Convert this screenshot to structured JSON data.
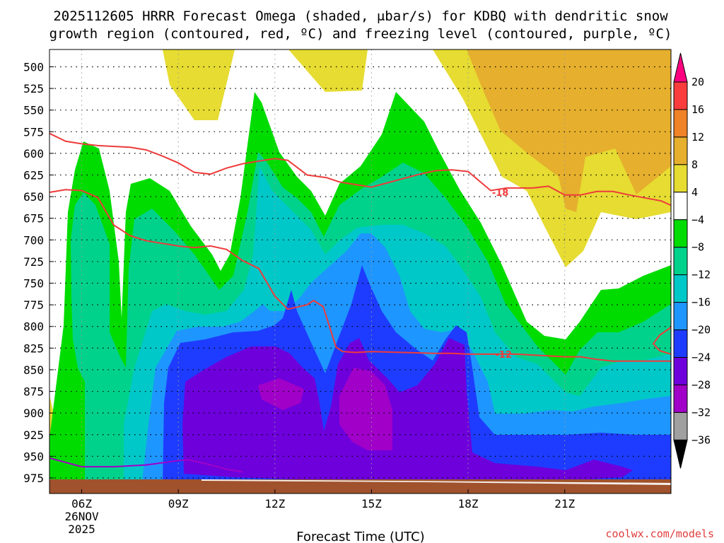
{
  "chart_data": {
    "type": "heatmap",
    "title_line1": "2025112605 HRRR Forecast Omega (shaded, μbar/s) for KDBQ with dendritic snow",
    "title_line2": "growth region (contoured, red, ºC) and freezing level (contoured, purple, ºC)",
    "xlabel": "Forecast Time (UTC)",
    "credit": "coolwx.com/models",
    "x_start_hour": 5,
    "x_end_hour": 24.3,
    "x_ticks": [
      {
        "hour": 6,
        "label": "06Z",
        "sub1": "26NOV",
        "sub2": "2025"
      },
      {
        "hour": 9,
        "label": "09Z"
      },
      {
        "hour": 12,
        "label": "12Z"
      },
      {
        "hour": 15,
        "label": "15Z"
      },
      {
        "hour": 18,
        "label": "18Z"
      },
      {
        "hour": 21,
        "label": "21Z"
      }
    ],
    "y_ticks": [
      500,
      525,
      550,
      575,
      600,
      625,
      650,
      675,
      700,
      725,
      750,
      775,
      800,
      825,
      850,
      875,
      900,
      925,
      950,
      975
    ],
    "ylim": [
      480,
      993
    ],
    "colorbar": {
      "levels": [
        "20",
        "16",
        "12",
        "8",
        "4",
        "−4",
        "−8",
        "−12",
        "−16",
        "−20",
        "−24",
        "−28",
        "−32",
        "−36"
      ],
      "colors": [
        "#ff0080",
        "#fa3c3c",
        "#f08228",
        "#e6af2d",
        "#e6dc32",
        "#ffffff",
        "#00dc00",
        "#00d28c",
        "#00c8c8",
        "#1e96ff",
        "#1e3cff",
        "#6e00dc",
        "#a000c8",
        "#a0a0a0",
        "#000000"
      ]
    },
    "contours": [
      {
        "name": "-18",
        "color": "#ee3b3b",
        "points": [
          [
            5,
            577
          ],
          [
            5.5,
            586
          ],
          [
            6,
            589
          ],
          [
            6.5,
            591
          ],
          [
            7,
            592
          ],
          [
            7.5,
            593
          ],
          [
            8,
            596
          ],
          [
            8.5,
            603
          ],
          [
            9,
            611
          ],
          [
            9.5,
            622
          ],
          [
            10,
            624
          ],
          [
            10.5,
            617
          ],
          [
            11,
            612
          ],
          [
            11.5,
            609
          ],
          [
            12,
            606
          ],
          [
            12.4,
            608
          ],
          [
            13,
            625
          ],
          [
            13.6,
            628
          ],
          [
            14,
            633
          ],
          [
            14.5,
            636
          ],
          [
            15,
            639
          ],
          [
            15.5,
            634
          ],
          [
            16,
            629
          ],
          [
            16.5,
            624
          ],
          [
            17,
            620
          ],
          [
            17.5,
            619
          ],
          [
            18,
            621
          ],
          [
            18.7,
            643
          ],
          [
            19.2,
            640
          ],
          [
            20,
            640
          ],
          [
            20.5,
            638
          ],
          [
            21,
            648
          ],
          [
            21.5,
            648
          ],
          [
            22,
            644
          ],
          [
            22.5,
            644
          ],
          [
            23,
            648
          ],
          [
            24,
            655
          ],
          [
            24.3,
            660
          ]
        ],
        "label": {
          "text": "-18",
          "hour": 19.0,
          "pressure": 645
        }
      },
      {
        "name": "-12",
        "color": "#ee3b3b",
        "points": [
          [
            5,
            645
          ],
          [
            5.5,
            642
          ],
          [
            6,
            643
          ],
          [
            6.5,
            651
          ],
          [
            7,
            683
          ],
          [
            7.5,
            695
          ],
          [
            8,
            701
          ],
          [
            8.5,
            704
          ],
          [
            9,
            707
          ],
          [
            9.5,
            709
          ],
          [
            10,
            707
          ],
          [
            10.5,
            711
          ],
          [
            11,
            724
          ],
          [
            11.5,
            733
          ],
          [
            12,
            765
          ],
          [
            12.4,
            780
          ],
          [
            13,
            775
          ],
          [
            13.2,
            770
          ],
          [
            13.5,
            777
          ],
          [
            13.9,
            824
          ],
          [
            14.1,
            829
          ],
          [
            14.5,
            830
          ],
          [
            15,
            829
          ],
          [
            16,
            830
          ],
          [
            17,
            831
          ],
          [
            17.5,
            831
          ],
          [
            18,
            832
          ],
          [
            18.5,
            832
          ],
          [
            19,
            832
          ],
          [
            19.5,
            832
          ],
          [
            20,
            833
          ],
          [
            20.5,
            834
          ],
          [
            21,
            835
          ],
          [
            21.5,
            835
          ],
          [
            22,
            838
          ],
          [
            22.5,
            840
          ],
          [
            23,
            840
          ],
          [
            24.3,
            840
          ]
        ],
        "label": {
          "text": "-12",
          "hour": 19.1,
          "pressure": 832
        }
      },
      {
        "name": "-12",
        "color": "#ee3b3b",
        "points": [
          [
            24.3,
            801
          ],
          [
            23.95,
            810
          ],
          [
            23.75,
            820
          ],
          [
            23.95,
            828
          ],
          [
            24.3,
            832
          ]
        ]
      },
      {
        "name": "0",
        "color": "#a000c8",
        "points": [
          [
            5,
            952
          ],
          [
            6,
            962
          ],
          [
            7,
            962
          ],
          [
            8,
            960
          ],
          [
            9,
            955
          ],
          [
            9.3,
            954
          ],
          [
            9.8,
            958
          ],
          [
            10.5,
            965
          ],
          [
            11,
            968
          ]
        ]
      }
    ],
    "terrain_color": "#a0522d",
    "terrain_top": 983
  }
}
